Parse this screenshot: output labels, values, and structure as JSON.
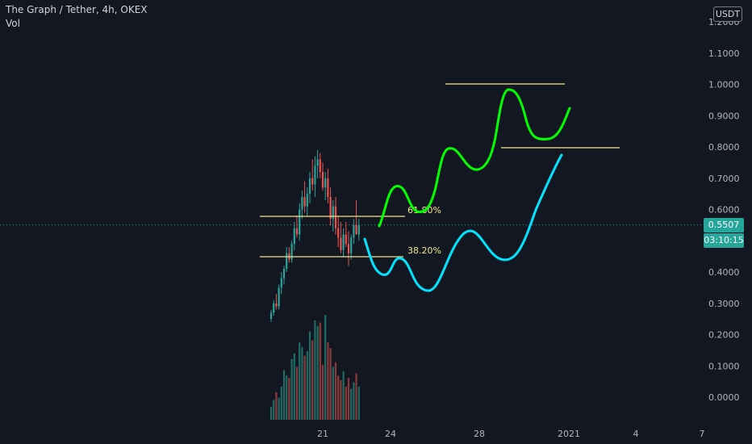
{
  "legend": {
    "symbol_line": "The Graph / Tether, 4h, OKEX",
    "volume_label": "Vol"
  },
  "currency_button": "USDT",
  "last_price": {
    "value": "0.5507",
    "countdown": "03:10:15",
    "color": "#26a69a"
  },
  "colors": {
    "background": "#131722",
    "up_candle": "#26a69a",
    "down_candle": "#ef5350",
    "up_volume": "#1f6b63",
    "down_volume": "#8a3a3a",
    "fib_line": "#f0e68c",
    "green_path": "#00ff00",
    "cyan_path": "#00e5ff",
    "axis_text": "#b2b5be"
  },
  "chart_data": {
    "type": "candlestick",
    "title": "The Graph / Tether, 4h, OKEX",
    "y_axis": {
      "ticks": [
        "1.2000",
        "1.1000",
        "1.0000",
        "0.9000",
        "0.8000",
        "0.7000",
        "0.6000",
        "0.5000",
        "0.4000",
        "0.3000",
        "0.2000",
        "0.1000",
        "0.0000"
      ],
      "range": [
        -0.07,
        1.22
      ]
    },
    "x_axis": {
      "ticks": [
        "21",
        "24",
        "28",
        "2021",
        "4",
        "7"
      ]
    },
    "candles": [
      [
        0.25,
        0.28,
        0.24,
        0.27
      ],
      [
        0.27,
        0.31,
        0.26,
        0.3
      ],
      [
        0.3,
        0.33,
        0.28,
        0.29
      ],
      [
        0.29,
        0.36,
        0.28,
        0.35
      ],
      [
        0.35,
        0.4,
        0.33,
        0.38
      ],
      [
        0.38,
        0.42,
        0.36,
        0.41
      ],
      [
        0.41,
        0.48,
        0.4,
        0.46
      ],
      [
        0.46,
        0.48,
        0.43,
        0.44
      ],
      [
        0.44,
        0.5,
        0.43,
        0.49
      ],
      [
        0.49,
        0.56,
        0.47,
        0.54
      ],
      [
        0.54,
        0.58,
        0.51,
        0.52
      ],
      [
        0.52,
        0.62,
        0.5,
        0.6
      ],
      [
        0.6,
        0.66,
        0.57,
        0.64
      ],
      [
        0.64,
        0.69,
        0.59,
        0.61
      ],
      [
        0.61,
        0.67,
        0.58,
        0.65
      ],
      [
        0.65,
        0.72,
        0.62,
        0.7
      ],
      [
        0.7,
        0.76,
        0.66,
        0.68
      ],
      [
        0.68,
        0.77,
        0.64,
        0.74
      ],
      [
        0.74,
        0.79,
        0.7,
        0.76
      ],
      [
        0.76,
        0.78,
        0.7,
        0.72
      ],
      [
        0.72,
        0.75,
        0.66,
        0.67
      ],
      [
        0.67,
        0.72,
        0.63,
        0.7
      ],
      [
        0.7,
        0.73,
        0.62,
        0.64
      ],
      [
        0.64,
        0.67,
        0.55,
        0.57
      ],
      [
        0.57,
        0.63,
        0.53,
        0.61
      ],
      [
        0.61,
        0.64,
        0.52,
        0.54
      ],
      [
        0.54,
        0.58,
        0.48,
        0.51
      ],
      [
        0.51,
        0.56,
        0.46,
        0.47
      ],
      [
        0.47,
        0.54,
        0.45,
        0.52
      ],
      [
        0.52,
        0.56,
        0.48,
        0.49
      ],
      [
        0.49,
        0.53,
        0.42,
        0.46
      ],
      [
        0.46,
        0.52,
        0.44,
        0.51
      ],
      [
        0.51,
        0.57,
        0.49,
        0.55
      ],
      [
        0.55,
        0.63,
        0.53,
        0.52
      ],
      [
        0.52,
        0.57,
        0.5,
        0.5507
      ]
    ],
    "volume": [
      12,
      18,
      25,
      20,
      30,
      45,
      40,
      38,
      55,
      60,
      48,
      70,
      66,
      58,
      62,
      80,
      72,
      90,
      85,
      88,
      50,
      95,
      70,
      65,
      48,
      52,
      40,
      36,
      44,
      30,
      38,
      28,
      34,
      42,
      30
    ],
    "annotations": {
      "fib_labels": [
        {
          "text": "61.80%",
          "price": 0.58
        },
        {
          "text": "38.20%",
          "price": 0.45
        }
      ]
    }
  }
}
